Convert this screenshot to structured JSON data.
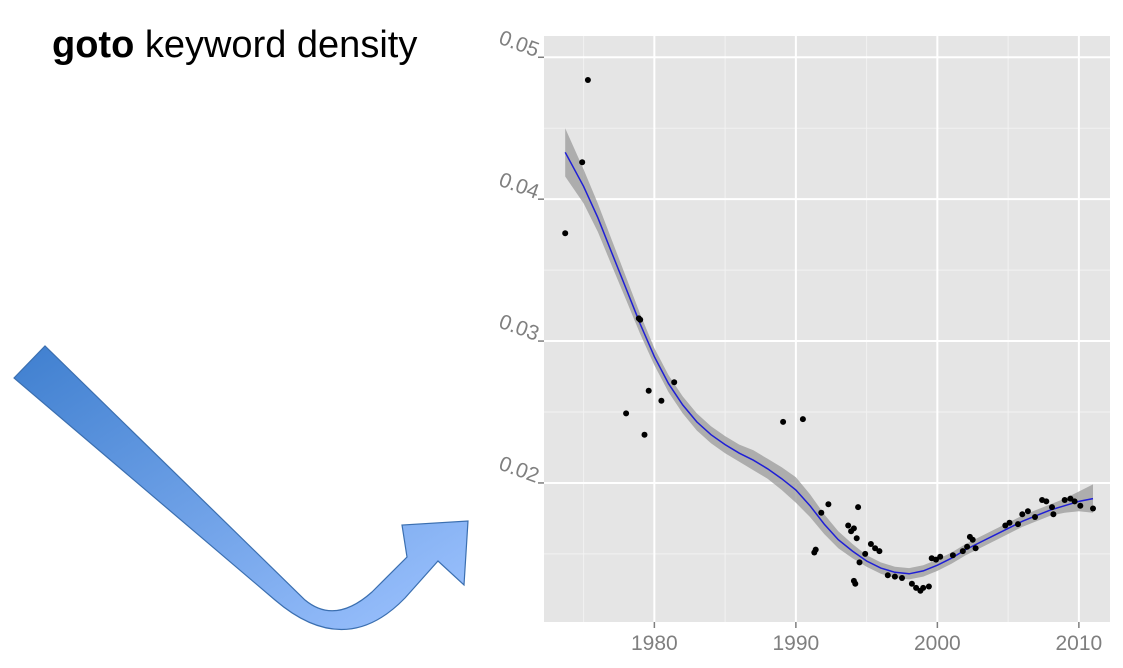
{
  "title": {
    "keyword": "goto",
    "rest": "keyword density"
  },
  "colors": {
    "panel": "#e5e5e5",
    "grid": "#ffffff",
    "band": "#999999",
    "line": "#1f1fd6",
    "points": "#000000",
    "arrow_start": "#3f7fcf",
    "arrow_end": "#9ec3ff"
  },
  "chart_data": {
    "type": "scatter",
    "xlim": [
      1972.2,
      2012.2
    ],
    "ylim": [
      0.0102,
      0.0515
    ],
    "xticks": [
      1980,
      1990,
      2000,
      2010
    ],
    "yticks": [
      0.02,
      0.03,
      0.04,
      0.05
    ],
    "x_tick_labels": [
      "1980",
      "1990",
      "2000",
      "2010"
    ],
    "y_tick_labels": [
      "0.02",
      "0.03",
      "0.04",
      "0.05"
    ],
    "grid": true,
    "points": [
      [
        1973.7,
        0.0376
      ],
      [
        1974.9,
        0.0426
      ],
      [
        1975.3,
        0.0484
      ],
      [
        1978.0,
        0.0249
      ],
      [
        1978.9,
        0.0316
      ],
      [
        1979.0,
        0.0315
      ],
      [
        1979.3,
        0.0234
      ],
      [
        1979.6,
        0.0265
      ],
      [
        1980.5,
        0.0258
      ],
      [
        1981.4,
        0.0271
      ],
      [
        1989.1,
        0.0243
      ],
      [
        1990.5,
        0.0245
      ],
      [
        1991.3,
        0.0151
      ],
      [
        1991.4,
        0.0153
      ],
      [
        1991.8,
        0.0179
      ],
      [
        1992.3,
        0.0185
      ],
      [
        1993.7,
        0.017
      ],
      [
        1993.9,
        0.0166
      ],
      [
        1994.1,
        0.0168
      ],
      [
        1994.3,
        0.0161
      ],
      [
        1994.4,
        0.0183
      ],
      [
        1994.1,
        0.0131
      ],
      [
        1994.2,
        0.0129
      ],
      [
        1994.5,
        0.0144
      ],
      [
        1994.9,
        0.015
      ],
      [
        1995.3,
        0.0157
      ],
      [
        1995.6,
        0.0154
      ],
      [
        1995.9,
        0.0152
      ],
      [
        1996.5,
        0.0135
      ],
      [
        1997.0,
        0.0134
      ],
      [
        1997.5,
        0.0133
      ],
      [
        1998.2,
        0.0129
      ],
      [
        1998.5,
        0.0126
      ],
      [
        1998.8,
        0.0124
      ],
      [
        1999.0,
        0.0126
      ],
      [
        1999.4,
        0.0127
      ],
      [
        1999.6,
        0.0147
      ],
      [
        1999.9,
        0.0146
      ],
      [
        2000.2,
        0.0148
      ],
      [
        2001.1,
        0.0149
      ],
      [
        2001.8,
        0.0152
      ],
      [
        2002.1,
        0.0155
      ],
      [
        2002.3,
        0.0162
      ],
      [
        2002.5,
        0.016
      ],
      [
        2002.7,
        0.0154
      ],
      [
        2004.8,
        0.017
      ],
      [
        2005.1,
        0.0172
      ],
      [
        2005.7,
        0.0171
      ],
      [
        2006.0,
        0.0178
      ],
      [
        2006.4,
        0.018
      ],
      [
        2006.9,
        0.0176
      ],
      [
        2007.4,
        0.0188
      ],
      [
        2007.7,
        0.0187
      ],
      [
        2008.1,
        0.0183
      ],
      [
        2008.2,
        0.0178
      ],
      [
        2009.0,
        0.0188
      ],
      [
        2009.4,
        0.0189
      ],
      [
        2009.7,
        0.0187
      ],
      [
        2010.1,
        0.0184
      ],
      [
        2011.0,
        0.0182
      ]
    ],
    "smooth": [
      [
        1973.7,
        0.0433,
        0.0416,
        0.045
      ],
      [
        1975,
        0.0409,
        0.0397,
        0.0421
      ],
      [
        1976,
        0.0387,
        0.0377,
        0.0397
      ],
      [
        1977,
        0.0362,
        0.0353,
        0.0371
      ],
      [
        1978,
        0.0337,
        0.0329,
        0.0345
      ],
      [
        1979,
        0.0312,
        0.0305,
        0.0319
      ],
      [
        1980,
        0.0289,
        0.0283,
        0.0295
      ],
      [
        1981,
        0.027,
        0.0264,
        0.0276
      ],
      [
        1982,
        0.0255,
        0.0249,
        0.0261
      ],
      [
        1983,
        0.0243,
        0.0237,
        0.0249
      ],
      [
        1984,
        0.0234,
        0.0228,
        0.024
      ],
      [
        1985,
        0.0227,
        0.0221,
        0.0233
      ],
      [
        1986,
        0.0221,
        0.0215,
        0.0227
      ],
      [
        1987,
        0.0216,
        0.0209,
        0.0223
      ],
      [
        1988,
        0.021,
        0.0203,
        0.0217
      ],
      [
        1989,
        0.0203,
        0.0195,
        0.0211
      ],
      [
        1990,
        0.0195,
        0.0186,
        0.0204
      ],
      [
        1991,
        0.0184,
        0.0176,
        0.0192
      ],
      [
        1992,
        0.0171,
        0.0164,
        0.0178
      ],
      [
        1993,
        0.016,
        0.0154,
        0.0166
      ],
      [
        1994,
        0.0152,
        0.0147,
        0.0157
      ],
      [
        1995,
        0.0145,
        0.0141,
        0.0149
      ],
      [
        1996,
        0.014,
        0.0136,
        0.0144
      ],
      [
        1997,
        0.0137,
        0.0133,
        0.0141
      ],
      [
        1998,
        0.0136,
        0.0132,
        0.014
      ],
      [
        1999,
        0.0138,
        0.0134,
        0.0142
      ],
      [
        2000,
        0.0142,
        0.0138,
        0.0146
      ],
      [
        2001,
        0.0147,
        0.0143,
        0.0151
      ],
      [
        2002,
        0.0153,
        0.0149,
        0.0157
      ],
      [
        2003,
        0.0158,
        0.0154,
        0.0162
      ],
      [
        2004,
        0.0163,
        0.0159,
        0.0167
      ],
      [
        2005,
        0.0168,
        0.0164,
        0.0172
      ],
      [
        2006,
        0.0173,
        0.0169,
        0.0177
      ],
      [
        2007,
        0.0177,
        0.0173,
        0.0181
      ],
      [
        2008,
        0.0181,
        0.0177,
        0.0185
      ],
      [
        2009,
        0.0184,
        0.0179,
        0.0189
      ],
      [
        2010,
        0.0187,
        0.018,
        0.0194
      ],
      [
        2011,
        0.0189,
        0.0179,
        0.0199
      ]
    ]
  }
}
